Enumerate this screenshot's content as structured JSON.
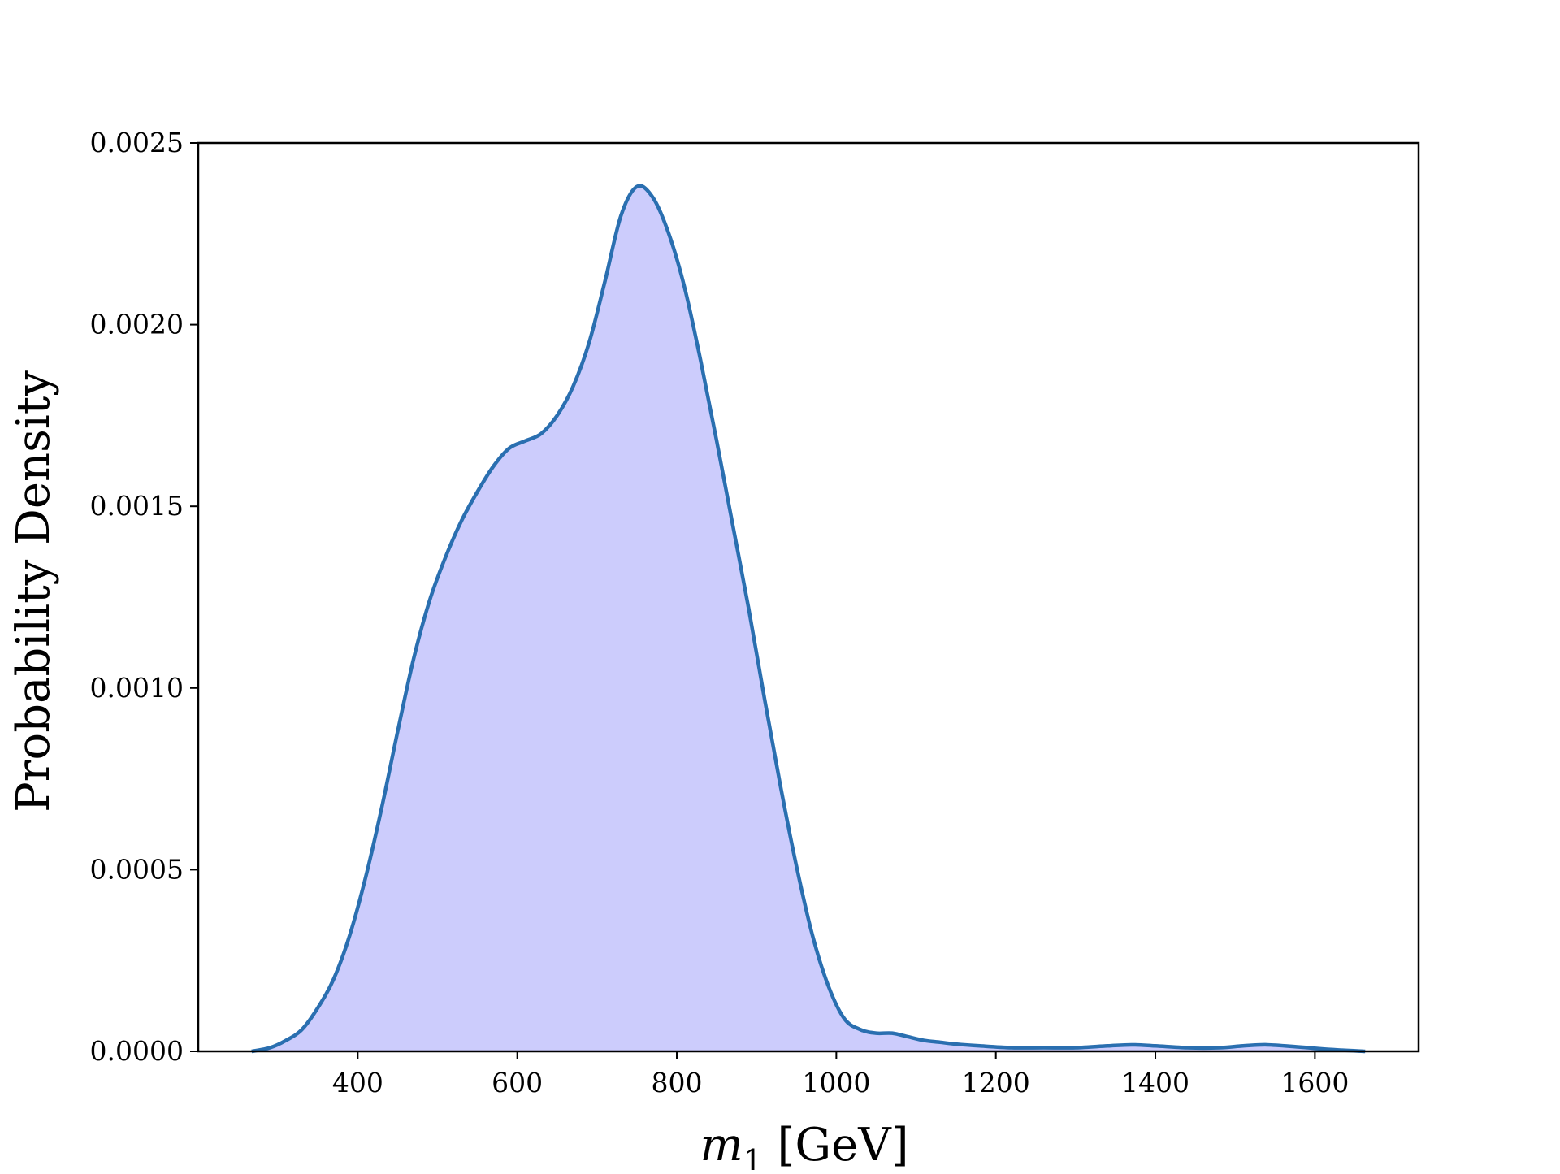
{
  "chart_data": {
    "type": "area",
    "title": "",
    "xlabel": "m_1 [GeV]",
    "xlabel_parts": {
      "var": "m",
      "sub": "1",
      "unit": "[GeV]"
    },
    "ylabel": "Probability Density",
    "xlim": [
      200,
      1730
    ],
    "ylim": [
      0.0,
      0.0025
    ],
    "xticks": [
      400,
      600,
      800,
      1000,
      1200,
      1400,
      1600
    ],
    "xtick_labels": [
      "400",
      "600",
      "800",
      "1000",
      "1200",
      "1400",
      "1600"
    ],
    "yticks": [
      0.0,
      0.0005,
      0.001,
      0.0015,
      0.002,
      0.0025
    ],
    "ytick_labels": [
      "0.0000",
      "0.0005",
      "0.0010",
      "0.0015",
      "0.0020",
      "0.0025"
    ],
    "grid": false,
    "legend": "none",
    "colors": {
      "line": "#2a6fb0",
      "fill": "#ccccfc",
      "axes": "#000000"
    },
    "series": [
      {
        "x": [
          267,
          290,
          310,
          330,
          350,
          370,
          390,
          410,
          430,
          450,
          470,
          490,
          510,
          530,
          550,
          570,
          590,
          610,
          630,
          650,
          670,
          690,
          710,
          730,
          750,
          770,
          790,
          810,
          830,
          850,
          870,
          890,
          910,
          930,
          950,
          970,
          990,
          1010,
          1030,
          1050,
          1070,
          1090,
          1110,
          1130,
          1150,
          1180,
          1220,
          1260,
          1300,
          1340,
          1370,
          1400,
          1440,
          1480,
          1510,
          1540,
          1580,
          1620,
          1663
        ],
        "y": [
          0.0,
          1e-05,
          3e-05,
          6e-05,
          0.00012,
          0.0002,
          0.00032,
          0.00048,
          0.00067,
          0.00088,
          0.00108,
          0.00124,
          0.00136,
          0.00146,
          0.00154,
          0.00161,
          0.00166,
          0.00168,
          0.0017,
          0.00175,
          0.00183,
          0.00195,
          0.00212,
          0.0023,
          0.00238,
          0.00235,
          0.00225,
          0.0021,
          0.0019,
          0.00168,
          0.00145,
          0.00122,
          0.00097,
          0.00073,
          0.00051,
          0.00032,
          0.00018,
          9e-05,
          6e-05,
          5e-05,
          5e-05,
          4e-05,
          3e-05,
          2.5e-05,
          2e-05,
          1.5e-05,
          1e-05,
          1e-05,
          1e-05,
          1.5e-05,
          1.8e-05,
          1.5e-05,
          1e-05,
          1e-05,
          1.5e-05,
          1.8e-05,
          1.2e-05,
          5e-06,
          0.0
        ]
      }
    ]
  }
}
